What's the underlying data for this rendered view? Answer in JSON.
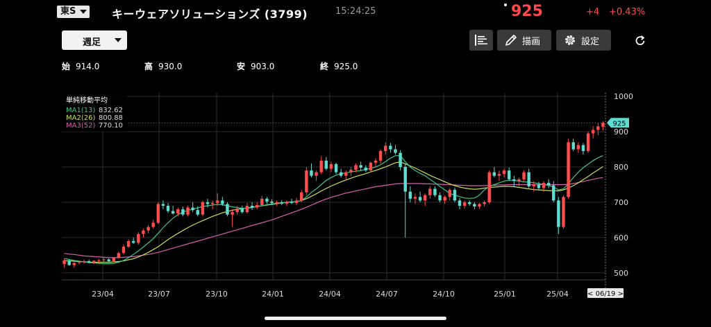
{
  "header": {
    "exchange_label": "東S",
    "stock_name": "キーウェアソリューションズ (3799)",
    "time": "15:24:25",
    "price": "925",
    "change": "+4",
    "change_pct": "+0.43%"
  },
  "toolbar": {
    "period_label": "週足",
    "list_icon": "candle-list-icon",
    "draw_label": "描画",
    "draw_icon": "pencil-icon",
    "settings_label": "設定",
    "settings_icon": "gear-icon",
    "reload_icon": "reload-icon"
  },
  "ohlc": {
    "open_label": "始",
    "open_value": "914.0",
    "high_label": "高",
    "high_value": "930.0",
    "low_label": "安",
    "low_value": "903.0",
    "close_label": "終",
    "close_value": "925.0"
  },
  "legend": {
    "title": "単純移動平均",
    "items": [
      {
        "label": "MA1(13)",
        "value": "832.62",
        "color": "#3cc888"
      },
      {
        "label": "MA2(26)",
        "value": "800.88",
        "color": "#c8e05a"
      },
      {
        "label": "MA3(52)",
        "value": "770.10",
        "color": "#d860b0"
      }
    ]
  },
  "chart_data": {
    "type": "candlestick",
    "yticks": [
      "1000",
      "900",
      "800",
      "700",
      "600",
      "500"
    ],
    "xticks": [
      "23/04",
      "23/07",
      "23/10",
      "24/01",
      "24/04",
      "24/07",
      "24/10",
      "25/01",
      "25/04"
    ],
    "current_price_label": "925",
    "date_label": "< 06/19 >",
    "ylim": [
      480,
      1010
    ],
    "up_color": "#ff4d4d",
    "down_color": "#5fdcd0",
    "candles": [
      [
        525,
        540,
        515,
        535
      ],
      [
        535,
        538,
        520,
        522
      ],
      [
        522,
        530,
        515,
        528
      ],
      [
        528,
        535,
        524,
        530
      ],
      [
        530,
        538,
        526,
        533
      ],
      [
        533,
        537,
        527,
        529
      ],
      [
        529,
        536,
        525,
        534
      ],
      [
        534,
        540,
        528,
        536
      ],
      [
        536,
        542,
        532,
        538
      ],
      [
        538,
        541,
        530,
        533
      ],
      [
        533,
        545,
        530,
        543
      ],
      [
        543,
        560,
        540,
        556
      ],
      [
        556,
        580,
        552,
        574
      ],
      [
        574,
        595,
        570,
        590
      ],
      [
        590,
        600,
        582,
        585
      ],
      [
        585,
        615,
        580,
        610
      ],
      [
        610,
        625,
        600,
        620
      ],
      [
        620,
        635,
        612,
        630
      ],
      [
        630,
        650,
        625,
        642
      ],
      [
        642,
        700,
        638,
        695
      ],
      [
        695,
        705,
        680,
        690
      ],
      [
        690,
        698,
        670,
        675
      ],
      [
        675,
        690,
        665,
        668
      ],
      [
        668,
        685,
        660,
        680
      ],
      [
        680,
        688,
        660,
        665
      ],
      [
        665,
        690,
        660,
        685
      ],
      [
        685,
        700,
        672,
        678
      ],
      [
        678,
        688,
        660,
        665
      ],
      [
        665,
        705,
        660,
        700
      ],
      [
        700,
        710,
        685,
        695
      ],
      [
        695,
        705,
        680,
        698
      ],
      [
        698,
        725,
        690,
        705
      ],
      [
        705,
        715,
        690,
        695
      ],
      [
        695,
        700,
        660,
        665
      ],
      [
        665,
        680,
        630,
        672
      ],
      [
        672,
        690,
        665,
        682
      ],
      [
        682,
        690,
        668,
        672
      ],
      [
        672,
        698,
        668,
        690
      ],
      [
        690,
        700,
        678,
        685
      ],
      [
        685,
        700,
        680,
        692
      ],
      [
        692,
        718,
        688,
        710
      ],
      [
        710,
        715,
        695,
        702
      ],
      [
        702,
        708,
        692,
        698
      ],
      [
        698,
        705,
        690,
        700
      ],
      [
        700,
        706,
        692,
        696
      ],
      [
        696,
        705,
        690,
        700
      ],
      [
        700,
        710,
        695,
        698
      ],
      [
        698,
        712,
        692,
        705
      ],
      [
        705,
        735,
        700,
        728
      ],
      [
        728,
        800,
        720,
        790
      ],
      [
        790,
        810,
        770,
        775
      ],
      [
        775,
        790,
        760,
        785
      ],
      [
        785,
        830,
        780,
        818
      ],
      [
        818,
        828,
        790,
        795
      ],
      [
        795,
        815,
        785,
        808
      ],
      [
        808,
        812,
        780,
        785
      ],
      [
        785,
        795,
        770,
        775
      ],
      [
        775,
        790,
        765,
        785
      ],
      [
        785,
        800,
        775,
        792
      ],
      [
        792,
        810,
        785,
        805
      ],
      [
        805,
        815,
        790,
        798
      ],
      [
        798,
        805,
        785,
        790
      ],
      [
        790,
        815,
        785,
        812
      ],
      [
        812,
        825,
        800,
        818
      ],
      [
        818,
        850,
        810,
        845
      ],
      [
        845,
        870,
        835,
        860
      ],
      [
        860,
        868,
        840,
        850
      ],
      [
        850,
        862,
        835,
        840
      ],
      [
        840,
        848,
        790,
        800
      ],
      [
        800,
        810,
        600,
        730
      ],
      [
        730,
        745,
        700,
        710
      ],
      [
        710,
        725,
        695,
        715
      ],
      [
        715,
        730,
        700,
        705
      ],
      [
        705,
        725,
        690,
        720
      ],
      [
        720,
        745,
        710,
        738
      ],
      [
        738,
        745,
        715,
        720
      ],
      [
        720,
        728,
        700,
        705
      ],
      [
        705,
        720,
        695,
        715
      ],
      [
        715,
        740,
        705,
        735
      ],
      [
        735,
        742,
        700,
        705
      ],
      [
        705,
        712,
        680,
        690
      ],
      [
        690,
        705,
        682,
        700
      ],
      [
        700,
        705,
        690,
        695
      ],
      [
        695,
        700,
        680,
        688
      ],
      [
        688,
        698,
        682,
        695
      ],
      [
        695,
        705,
        688,
        700
      ],
      [
        700,
        790,
        695,
        785
      ],
      [
        785,
        800,
        770,
        775
      ],
      [
        775,
        790,
        760,
        780
      ],
      [
        780,
        795,
        770,
        790
      ],
      [
        790,
        798,
        760,
        765
      ],
      [
        765,
        775,
        745,
        760
      ],
      [
        760,
        770,
        745,
        765
      ],
      [
        765,
        790,
        760,
        785
      ],
      [
        785,
        795,
        740,
        745
      ],
      [
        745,
        760,
        730,
        750
      ],
      [
        750,
        758,
        735,
        740
      ],
      [
        740,
        760,
        730,
        755
      ],
      [
        755,
        765,
        740,
        748
      ],
      [
        748,
        760,
        700,
        705
      ],
      [
        705,
        715,
        610,
        630
      ],
      [
        630,
        720,
        625,
        715
      ],
      [
        715,
        880,
        710,
        870
      ],
      [
        870,
        880,
        845,
        850
      ],
      [
        850,
        870,
        840,
        862
      ],
      [
        862,
        868,
        835,
        845
      ],
      [
        845,
        900,
        840,
        895
      ],
      [
        895,
        915,
        880,
        905
      ],
      [
        905,
        925,
        890,
        915
      ],
      [
        914,
        930,
        903,
        925
      ]
    ],
    "ma1": [
      541,
      538,
      535,
      533,
      531,
      529,
      528,
      527,
      526,
      526,
      527,
      530,
      535,
      543,
      552,
      562,
      573,
      585,
      597,
      612,
      628,
      642,
      655,
      665,
      672,
      677,
      680,
      684,
      688,
      690,
      692,
      694,
      693,
      690,
      687,
      685,
      683,
      683,
      685,
      688,
      690,
      693,
      695,
      697,
      698,
      700,
      701,
      702,
      705,
      715,
      728,
      738,
      750,
      762,
      770,
      777,
      781,
      783,
      786,
      788,
      790,
      793,
      796,
      800,
      806,
      815,
      825,
      832,
      832,
      815,
      800,
      790,
      782,
      775,
      765,
      755,
      745,
      735,
      725,
      720,
      716,
      712,
      711,
      712,
      720,
      735,
      745,
      750,
      755,
      760,
      762,
      762,
      760,
      758,
      757,
      755,
      753,
      750,
      748,
      743,
      735,
      738,
      752,
      770,
      785,
      798,
      808,
      818,
      826,
      832
    ],
    "ma2": [
      535,
      534,
      533,
      532,
      531,
      530,
      530,
      530,
      530,
      530,
      531,
      532,
      534,
      537,
      540,
      545,
      551,
      558,
      566,
      574,
      584,
      594,
      603,
      612,
      620,
      628,
      635,
      642,
      648,
      654,
      660,
      665,
      670,
      674,
      677,
      680,
      682,
      684,
      686,
      688,
      690,
      692,
      694,
      696,
      698,
      700,
      701,
      702,
      705,
      710,
      717,
      724,
      732,
      739,
      746,
      752,
      758,
      763,
      768,
      773,
      777,
      781,
      786,
      790,
      795,
      800,
      806,
      812,
      814,
      809,
      803,
      797,
      790,
      783,
      776,
      770,
      764,
      758,
      752,
      747,
      743,
      740,
      738,
      737,
      738,
      740,
      742,
      743,
      744,
      745,
      745,
      744,
      742,
      740,
      738,
      736,
      735,
      734,
      733,
      733,
      732,
      735,
      740,
      747,
      755,
      764,
      773,
      783,
      792,
      801
    ],
    "ma3": [
      555,
      553,
      552,
      550,
      548,
      547,
      546,
      545,
      544,
      543,
      543,
      543,
      544,
      545,
      546,
      548,
      550,
      552,
      555,
      558,
      562,
      566,
      570,
      574,
      578,
      582,
      586,
      590,
      594,
      598,
      602,
      606,
      610,
      614,
      618,
      622,
      626,
      630,
      634,
      638,
      642,
      646,
      650,
      655,
      660,
      665,
      670,
      675,
      680,
      686,
      692,
      698,
      704,
      709,
      714,
      718,
      722,
      726,
      729,
      732,
      735,
      738,
      741,
      744,
      746,
      748,
      750,
      752,
      753,
      753,
      753,
      753,
      753,
      752,
      752,
      751,
      751,
      750,
      750,
      749,
      748,
      748,
      747,
      747,
      747,
      747,
      748,
      748,
      749,
      749,
      750,
      750,
      750,
      750,
      750,
      750,
      750,
      750,
      750,
      750,
      750,
      750,
      751,
      753,
      756,
      759,
      762,
      765,
      768,
      770
    ]
  }
}
